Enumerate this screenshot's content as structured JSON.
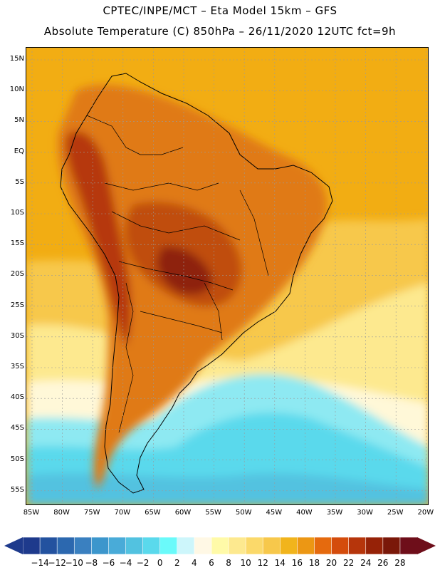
{
  "header": {
    "line1": "CPTEC/INPE/MCT –   Eta Model 15km – GFS",
    "line2": "Absolute Temperature (C) 850hPa – 26/11/2020 12UTC fct=9h"
  },
  "axes": {
    "lat_labels": [
      "15N",
      "10N",
      "5N",
      "EQ",
      "5S",
      "10S",
      "15S",
      "20S",
      "25S",
      "30S",
      "35S",
      "40S",
      "45S",
      "50S",
      "55S"
    ],
    "lon_labels": [
      "85W",
      "80W",
      "75W",
      "70W",
      "65W",
      "60W",
      "55W",
      "50W",
      "45W",
      "40W",
      "35W",
      "30W",
      "25W",
      "20W"
    ]
  },
  "legend": {
    "labels": [
      "-14",
      "-12",
      "-10",
      "-8",
      "-6",
      "-4",
      "-2",
      "0",
      "2",
      "4",
      "6",
      "8",
      "10",
      "12",
      "14",
      "16",
      "18",
      "20",
      "22",
      "24",
      "26",
      "28"
    ],
    "colors": [
      "#1e3a8c",
      "#23529f",
      "#2c68af",
      "#3a80c0",
      "#3c96cc",
      "#49abd8",
      "#52c2e0",
      "#5ad9ec",
      "#6afafa",
      "#cdf6fb",
      "#fff8e5",
      "#fffaa8",
      "#fde98f",
      "#fbd96a",
      "#f7c84b",
      "#f1b41c",
      "#ec9714",
      "#e56a0e",
      "#d44c0c",
      "#b6350b",
      "#962207",
      "#7a1809",
      "#6e0e1a"
    ]
  }
}
